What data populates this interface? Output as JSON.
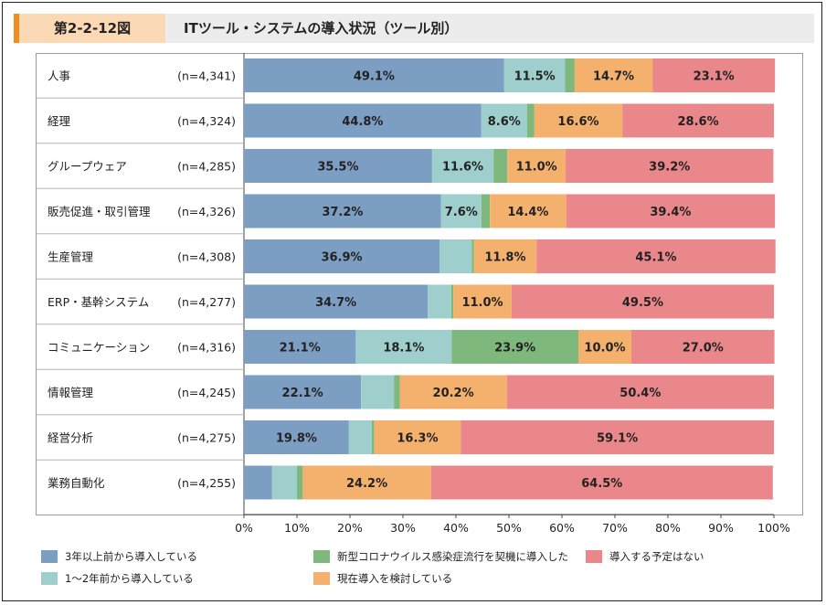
{
  "header": {
    "figure_number": "第2-2-12図",
    "title": "ITツール・システムの導入状況（ツール別）"
  },
  "colors": {
    "series": [
      "#7d9ec3",
      "#9fcfcd",
      "#7fb87c",
      "#f4b16e",
      "#e9878a"
    ],
    "accent": "#f08c1e",
    "figure_label_bg": "#fbd9b5",
    "header_bg": "#ececec"
  },
  "chart_data": {
    "type": "bar",
    "orientation": "horizontal",
    "stacked": true,
    "categories": [
      "人事",
      "経理",
      "グループウェア",
      "販売促進・取引管理",
      "生産管理",
      "ERP・基幹システム",
      "コミュニケーション",
      "情報管理",
      "経営分析",
      "業務自動化"
    ],
    "sample_sizes": [
      "(n=4,341)",
      "(n=4,324)",
      "(n=4,285)",
      "(n=4,326)",
      "(n=4,308)",
      "(n=4,277)",
      "(n=4,316)",
      "(n=4,245)",
      "(n=4,275)",
      "(n=4,255)"
    ],
    "series": [
      {
        "name": "3年以上前から導入している",
        "values": [
          49.1,
          44.8,
          35.5,
          37.2,
          36.9,
          34.7,
          21.1,
          22.1,
          19.8,
          5.3
        ]
      },
      {
        "name": "1～2年前から導入している",
        "values": [
          11.5,
          8.6,
          11.6,
          7.6,
          6.1,
          4.4,
          18.1,
          6.2,
          4.3,
          4.7
        ]
      },
      {
        "name": "新型コロナウイルス感染症流行を契機に導入した",
        "values": [
          1.8,
          1.4,
          2.6,
          1.6,
          0.4,
          0.4,
          23.9,
          1.1,
          0.5,
          1.1
        ]
      },
      {
        "name": "現在導入を検討している",
        "values": [
          14.7,
          16.6,
          11.0,
          14.4,
          11.8,
          11.0,
          10.0,
          20.2,
          16.3,
          24.2
        ]
      },
      {
        "name": "導入する予定はない",
        "values": [
          23.1,
          28.6,
          39.2,
          39.4,
          45.1,
          49.5,
          27.0,
          50.4,
          59.1,
          64.5
        ]
      }
    ],
    "data_labels": [
      [
        "49.1%",
        "11.5%",
        "",
        "14.7%",
        "23.1%"
      ],
      [
        "44.8%",
        "8.6%",
        "",
        "16.6%",
        "28.6%"
      ],
      [
        "35.5%",
        "11.6%",
        "",
        "11.0%",
        "39.2%"
      ],
      [
        "37.2%",
        "7.6%",
        "",
        "14.4%",
        "39.4%"
      ],
      [
        "36.9%",
        "",
        "",
        "11.8%",
        "45.1%"
      ],
      [
        "34.7%",
        "",
        "",
        "11.0%",
        "49.5%"
      ],
      [
        "21.1%",
        "18.1%",
        "23.9%",
        "10.0%",
        "27.0%"
      ],
      [
        "22.1%",
        "",
        "",
        "20.2%",
        "50.4%"
      ],
      [
        "19.8%",
        "",
        "",
        "16.3%",
        "59.1%"
      ],
      [
        "",
        "",
        "",
        "24.2%",
        "64.5%"
      ]
    ],
    "x_ticks": [
      "0%",
      "10%",
      "20%",
      "30%",
      "40%",
      "50%",
      "60%",
      "70%",
      "80%",
      "90%",
      "100%"
    ],
    "xlim": [
      0,
      100
    ],
    "xlabel": "",
    "ylabel": ""
  }
}
